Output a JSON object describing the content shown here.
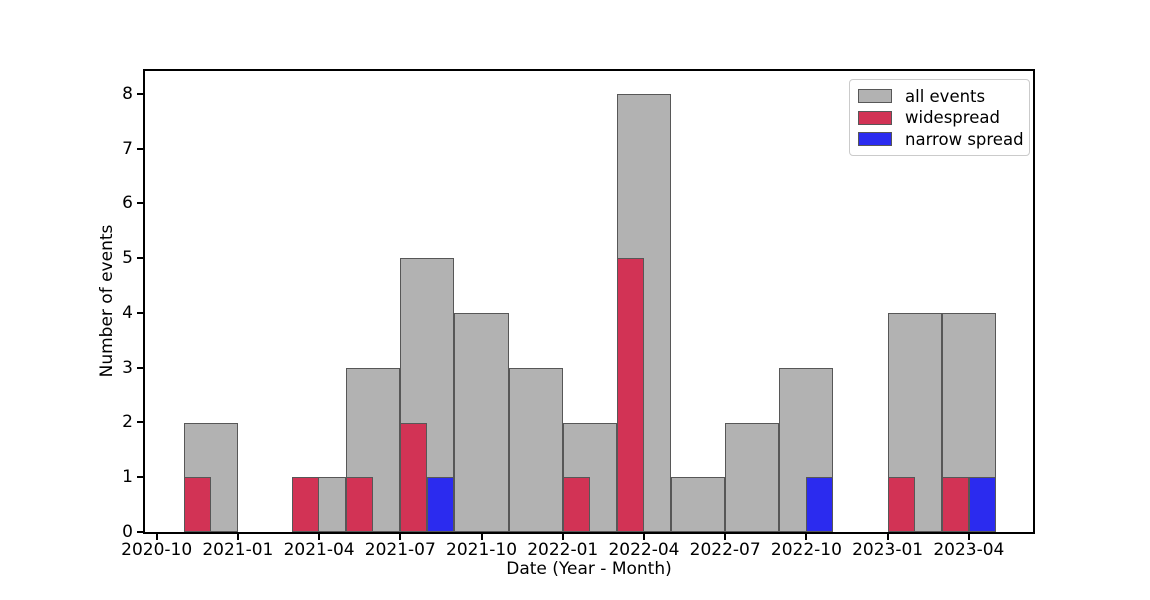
{
  "chart_data": {
    "type": "bar",
    "subtype": "histogram",
    "title": "",
    "xlabel": "Date (Year - Month)",
    "ylabel": "Number of events",
    "x_tick_labels": [
      "2020-10",
      "2021-01",
      "2021-04",
      "2021-07",
      "2021-10",
      "2022-01",
      "2022-04",
      "2022-07",
      "2022-10",
      "2023-01",
      "2023-04"
    ],
    "y_tick_labels": [
      "0",
      "1",
      "2",
      "3",
      "4",
      "5",
      "6",
      "7",
      "8"
    ],
    "axis": {
      "x_origin_month": "2020-10",
      "x_min_months": -0.43,
      "x_max_months": 32.37,
      "y_min": 0,
      "y_max": 8.42,
      "grid": false
    },
    "legend": {
      "position": "upper right"
    },
    "series": [
      {
        "name": "all events",
        "color": "#b2b2b2",
        "edge_color": "#575757",
        "bin_width_months": 2,
        "bins": [
          {
            "start": "2020-11",
            "count": 2
          },
          {
            "start": "2021-01",
            "count": 0
          },
          {
            "start": "2021-03",
            "count": 1
          },
          {
            "start": "2021-05",
            "count": 3
          },
          {
            "start": "2021-07",
            "count": 5
          },
          {
            "start": "2021-09",
            "count": 4
          },
          {
            "start": "2021-11",
            "count": 3
          },
          {
            "start": "2022-01",
            "count": 2
          },
          {
            "start": "2022-03",
            "count": 8
          },
          {
            "start": "2022-05",
            "count": 1
          },
          {
            "start": "2022-07",
            "count": 2
          },
          {
            "start": "2022-09",
            "count": 3
          },
          {
            "start": "2022-11",
            "count": 0
          },
          {
            "start": "2023-01",
            "count": 4
          },
          {
            "start": "2023-03",
            "count": 4
          }
        ]
      },
      {
        "name": "widespread",
        "color": "#d23355",
        "edge_color": "#575757",
        "bin_width_months": 1,
        "bins": [
          {
            "start": "2020-11",
            "count": 1
          },
          {
            "start": "2021-03",
            "count": 1
          },
          {
            "start": "2021-05",
            "count": 1
          },
          {
            "start": "2021-07",
            "count": 2
          },
          {
            "start": "2022-01",
            "count": 1
          },
          {
            "start": "2022-03",
            "count": 5
          },
          {
            "start": "2023-01",
            "count": 1
          },
          {
            "start": "2023-03",
            "count": 1
          }
        ]
      },
      {
        "name": "narrow spread",
        "color": "#2b2bef",
        "edge_color": "#575757",
        "bin_width_months": 1,
        "bins": [
          {
            "start": "2021-08",
            "count": 1
          },
          {
            "start": "2022-10",
            "count": 1
          },
          {
            "start": "2023-04",
            "count": 1
          }
        ]
      }
    ]
  }
}
